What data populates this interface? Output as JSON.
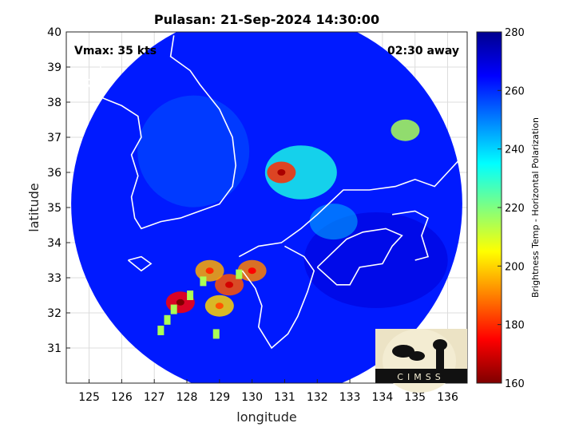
{
  "chart_data": {
    "type": "heatmap",
    "title": "Pulasan: 21-Sep-2024 14:30:00",
    "xlabel": "longitude",
    "ylabel": "latitude",
    "xlim": [
      124.3,
      136.6
    ],
    "ylim": [
      30.0,
      40.0
    ],
    "x_ticks": [
      125,
      126,
      127,
      128,
      129,
      130,
      131,
      132,
      133,
      134,
      135,
      136
    ],
    "y_ticks": [
      31,
      32,
      33,
      34,
      35,
      36,
      37,
      38,
      39,
      40
    ],
    "grid": true,
    "annotations": {
      "vmax": "Vmax: 35 kts",
      "time_away": "02:30 away"
    },
    "colorbar": {
      "label": "Brightness Temp - Horizontal Polarization",
      "range": [
        160,
        280
      ],
      "ticks": [
        160,
        180,
        200,
        220,
        240,
        260,
        280
      ],
      "colors": [
        "#7f0000",
        "#ff0000",
        "#ff8000",
        "#ffff00",
        "#80ff80",
        "#00ffff",
        "#0080ff",
        "#0000ff",
        "#00008f"
      ]
    },
    "swath": {
      "center_lon": 130.45,
      "center_lat": 35.1,
      "radius_deg": 6.0,
      "background_temp": 262
    },
    "features": [
      {
        "name": "cloud band",
        "lon": 131.5,
        "lat": 36.0,
        "temp": 232
      },
      {
        "name": "cold cell",
        "lon": 130.9,
        "lat": 36.0,
        "temp": 180
      },
      {
        "name": "convection",
        "lon": 130.0,
        "lat": 33.2,
        "temp": 190
      },
      {
        "name": "convection",
        "lon": 129.3,
        "lat": 32.8,
        "temp": 185
      },
      {
        "name": "convection",
        "lon": 128.7,
        "lat": 33.2,
        "temp": 195
      },
      {
        "name": "convection",
        "lon": 127.8,
        "lat": 32.3,
        "temp": 175
      },
      {
        "name": "convection",
        "lon": 129.0,
        "lat": 32.2,
        "temp": 200
      },
      {
        "name": "rain band",
        "lon": 132.5,
        "lat": 34.6,
        "temp": 245
      },
      {
        "name": "warm spot",
        "lon": 134.7,
        "lat": 37.2,
        "temp": 215
      }
    ]
  },
  "logo": {
    "text": "CIMSS"
  }
}
